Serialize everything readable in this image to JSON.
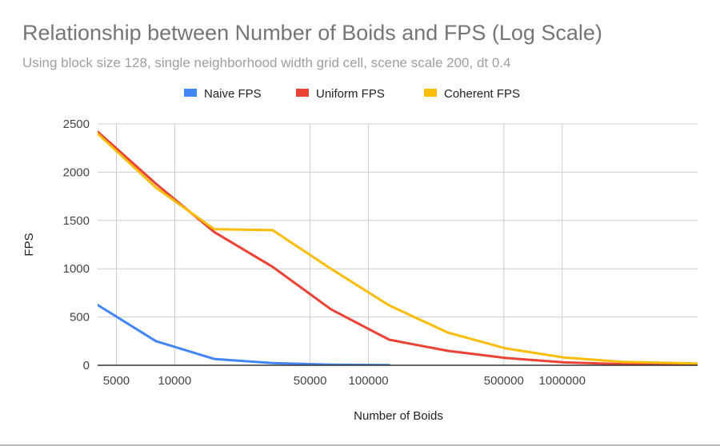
{
  "chart_data": {
    "type": "line",
    "title": "Relationship between Number of Boids and FPS (Log Scale)",
    "subtitle": "Using block size 128, single neighborhood width grid cell, scene scale 200, dt 0.4",
    "xlabel": "Number of Boids",
    "ylabel": "FPS",
    "x_scale": "log",
    "xlim": [
      4000,
      5000000
    ],
    "ylim": [
      0,
      2500
    ],
    "x_tick_labels": [
      "5000",
      "10000",
      "50000",
      "100000",
      "500000",
      "1000000"
    ],
    "x_ticks": [
      5000,
      10000,
      50000,
      100000,
      500000,
      1000000
    ],
    "y_ticks": [
      0,
      500,
      1000,
      1500,
      2000,
      2500
    ],
    "y_tick_labels": [
      "0",
      "500",
      "1000",
      "1500",
      "2000",
      "2500"
    ],
    "grid": true,
    "legend_position": "top",
    "series": [
      {
        "name": "Naive FPS",
        "color": "#4285f4",
        "points": [
          [
            4000,
            625
          ],
          [
            8000,
            250
          ],
          [
            16000,
            65
          ],
          [
            32000,
            22
          ],
          [
            64000,
            7
          ],
          [
            128000,
            2
          ]
        ]
      },
      {
        "name": "Uniform FPS",
        "color": "#ea4335",
        "points": [
          [
            4000,
            2420
          ],
          [
            8000,
            1880
          ],
          [
            16000,
            1380
          ],
          [
            32000,
            1020
          ],
          [
            64000,
            580
          ],
          [
            128000,
            265
          ],
          [
            256000,
            150
          ],
          [
            512000,
            75
          ],
          [
            1024000,
            30
          ],
          [
            2048000,
            12
          ],
          [
            5000000,
            8
          ]
        ]
      },
      {
        "name": "Coherent FPS",
        "color": "#fbbc04",
        "points": [
          [
            4000,
            2400
          ],
          [
            8000,
            1840
          ],
          [
            16000,
            1410
          ],
          [
            32000,
            1400
          ],
          [
            64000,
            1000
          ],
          [
            128000,
            620
          ],
          [
            256000,
            340
          ],
          [
            512000,
            175
          ],
          [
            1024000,
            80
          ],
          [
            2048000,
            35
          ],
          [
            5000000,
            18
          ]
        ]
      }
    ]
  }
}
